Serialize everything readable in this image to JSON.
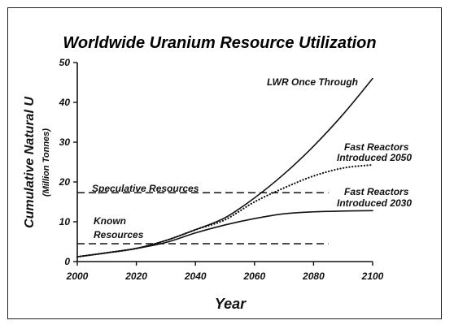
{
  "chart_data": {
    "type": "line",
    "title": "Worldwide Uranium Resource Utilization",
    "xlabel": "Year",
    "ylabel": "Cumulative Natural U",
    "ylabel_sub": "(Million Tonnes)",
    "xlim": [
      2000,
      2100
    ],
    "ylim": [
      0,
      50
    ],
    "x_ticks": [
      "2000",
      "2020",
      "2040",
      "2060",
      "2080",
      "2100"
    ],
    "y_ticks": [
      "0",
      "10",
      "20",
      "30",
      "40",
      "50"
    ],
    "grid": false,
    "series": [
      {
        "name": "LWR Once Through",
        "style": "solid",
        "x": [
          2000,
          2010,
          2020,
          2030,
          2040,
          2050,
          2060,
          2070,
          2080,
          2090,
          2100
        ],
        "y": [
          1.2,
          2.2,
          3.3,
          5.3,
          8.0,
          11.0,
          16.0,
          22.0,
          29.0,
          37.0,
          46.0
        ]
      },
      {
        "name": "Fast Reactors Introduced 2050",
        "style": "dotted",
        "x": [
          2000,
          2010,
          2020,
          2030,
          2040,
          2050,
          2060,
          2070,
          2080,
          2090,
          2100
        ],
        "y": [
          1.2,
          2.2,
          3.3,
          5.3,
          8.0,
          10.5,
          15.0,
          18.5,
          21.5,
          23.5,
          24.3
        ]
      },
      {
        "name": "Fast Reactors Introduced 2030",
        "style": "solid",
        "x": [
          2000,
          2010,
          2020,
          2030,
          2040,
          2050,
          2060,
          2070,
          2080,
          2090,
          2100
        ],
        "y": [
          1.2,
          2.2,
          3.3,
          4.8,
          7.2,
          9.2,
          10.8,
          12.0,
          12.5,
          12.7,
          12.8
        ]
      }
    ],
    "reference_lines": [
      {
        "name": "Speculative Resources",
        "style": "dashed",
        "y": 17.3,
        "x": [
          2000,
          2085
        ]
      },
      {
        "name": "Known Resources",
        "style": "dashed",
        "y": 4.5,
        "x": [
          2000,
          2085
        ]
      }
    ],
    "annotations": [
      {
        "text": "LWR Once Through"
      },
      {
        "text": "Fast Reactors"
      },
      {
        "text": "Introduced 2050"
      },
      {
        "text": "Speculative Resources"
      },
      {
        "text": "Fast Reactors"
      },
      {
        "text": "Introduced 2030"
      },
      {
        "text": "Known"
      },
      {
        "text": "Resources"
      }
    ],
    "colors": {
      "ink": "#111111",
      "background": "#ffffff"
    }
  }
}
